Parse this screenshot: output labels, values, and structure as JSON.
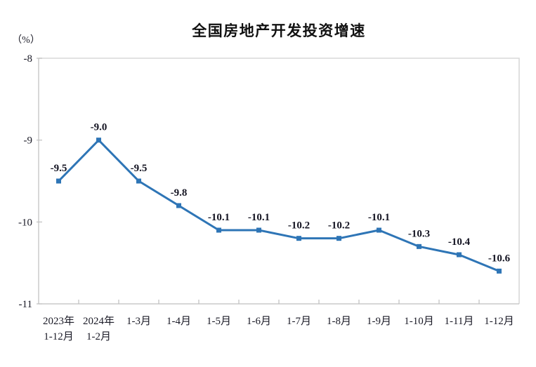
{
  "page": {
    "background_color": "#ffffff"
  },
  "chart_data": {
    "type": "line",
    "title": "全国房地产开发投资增速",
    "unit_label": "（%）",
    "categories": [
      [
        "2023年",
        "1-12月"
      ],
      [
        "2024年",
        "1-2月"
      ],
      [
        "1-3月"
      ],
      [
        "1-4月"
      ],
      [
        "1-5月"
      ],
      [
        "1-6月"
      ],
      [
        "1-7月"
      ],
      [
        "1-8月"
      ],
      [
        "1-9月"
      ],
      [
        "1-10月"
      ],
      [
        "1-11月"
      ],
      [
        "1-12月"
      ]
    ],
    "values": [
      -9.5,
      -9.0,
      -9.5,
      -9.8,
      -10.1,
      -10.1,
      -10.2,
      -10.2,
      -10.1,
      -10.3,
      -10.4,
      -10.6
    ],
    "data_labels": [
      "-9.5",
      "-9.0",
      "-9.5",
      "-9.8",
      "-10.1",
      "-10.1",
      "-10.2",
      "-10.2",
      "-10.1",
      "-10.3",
      "-10.4",
      "-10.6"
    ],
    "yticks": [
      {
        "label": "-8",
        "value": -8
      },
      {
        "label": "-9",
        "value": -9
      },
      {
        "label": "-10",
        "value": -10
      },
      {
        "label": "-11",
        "value": -11
      }
    ],
    "ylim": [
      -11,
      -8
    ],
    "grid": false,
    "legend_position": "none",
    "marker_shape": "square",
    "line_color": "#2E75B6",
    "marker_color": "#2E75B6",
    "label_color": "#141422",
    "axis_color": "#BFBFBF",
    "plot_border_color": "#D9D9D9"
  }
}
